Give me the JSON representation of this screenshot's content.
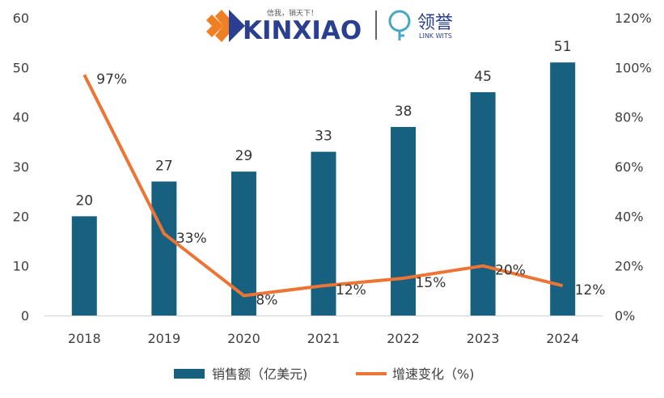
{
  "brand": {
    "logo_left_text": "KINXIAO",
    "logo_left_slogan": "信我，销天下！",
    "logo_right_text": "领誉",
    "logo_right_sub": "LINK WITS",
    "colors": {
      "orange": "#f07f23",
      "navy": "#2a3f8f",
      "teal": "#49a7c4"
    }
  },
  "chart_data": {
    "type": "bar",
    "categories": [
      "2018",
      "2019",
      "2020",
      "2021",
      "2022",
      "2023",
      "2024"
    ],
    "series": [
      {
        "name": "销售额（亿美元)",
        "type": "bar",
        "axis": "left",
        "color": "#17607f",
        "values": [
          20,
          27,
          29,
          33,
          38,
          45,
          51
        ],
        "labels": [
          "20",
          "27",
          "29",
          "33",
          "38",
          "45",
          "51"
        ]
      },
      {
        "name": "增速变化（%)",
        "type": "line",
        "axis": "right",
        "color": "#ec7434",
        "values": [
          97,
          33,
          8,
          12,
          15,
          20,
          12
        ],
        "labels": [
          "97%",
          "33%",
          "8%",
          "12%",
          "15%",
          "20%",
          "12%"
        ]
      }
    ],
    "y_left": {
      "min": 0,
      "max": 60,
      "ticks": [
        "0",
        "10",
        "20",
        "30",
        "40",
        "50",
        "60"
      ]
    },
    "y_right": {
      "min": 0,
      "max": 120,
      "ticks": [
        "0%",
        "20%",
        "40%",
        "60%",
        "80%",
        "100%",
        "120%"
      ]
    },
    "grid": false,
    "legend_position": "bottom-center"
  }
}
